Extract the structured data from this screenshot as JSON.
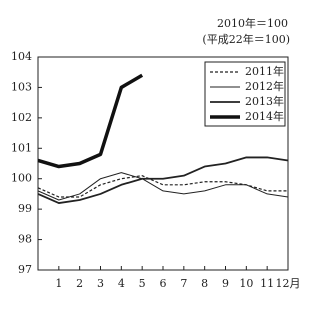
{
  "chart_data": {
    "type": "line",
    "annotations": [
      "2010年＝100",
      "(平成22年＝100)"
    ],
    "categories": [
      null,
      "1",
      "2",
      "3",
      "4",
      "5",
      "6",
      "7",
      "8",
      "9",
      "10",
      "11",
      "12月"
    ],
    "series": [
      {
        "name": "2011年",
        "color": "#222222",
        "linestyle": "dashed",
        "linewidth": 1.2,
        "values": [
          99.7,
          99.4,
          99.4,
          99.8,
          100.0,
          100.1,
          99.8,
          99.8,
          99.9,
          99.9,
          99.8,
          99.6,
          99.6
        ]
      },
      {
        "name": "2012年",
        "color": "#222222",
        "linestyle": "solid",
        "linewidth": 1,
        "values": [
          99.6,
          99.3,
          99.5,
          100.0,
          100.2,
          100.0,
          99.6,
          99.5,
          99.6,
          99.8,
          99.8,
          99.5,
          99.4
        ]
      },
      {
        "name": "2013年",
        "color": "#222222",
        "linestyle": "solid",
        "linewidth": 1.8,
        "values": [
          99.5,
          99.2,
          99.3,
          99.5,
          99.8,
          100.0,
          100.0,
          100.1,
          100.4,
          100.5,
          100.7,
          100.7,
          100.6
        ]
      },
      {
        "name": "2014年",
        "color": "#111111",
        "linestyle": "solid",
        "linewidth": 3.5,
        "values": [
          100.6,
          100.4,
          100.5,
          100.8,
          103.0,
          103.4,
          null,
          null,
          null,
          null,
          null,
          null,
          null
        ]
      }
    ],
    "ylim": [
      97,
      104
    ],
    "yticks": [
      97,
      98,
      99,
      100,
      101,
      102,
      103,
      104
    ],
    "grid": false
  }
}
